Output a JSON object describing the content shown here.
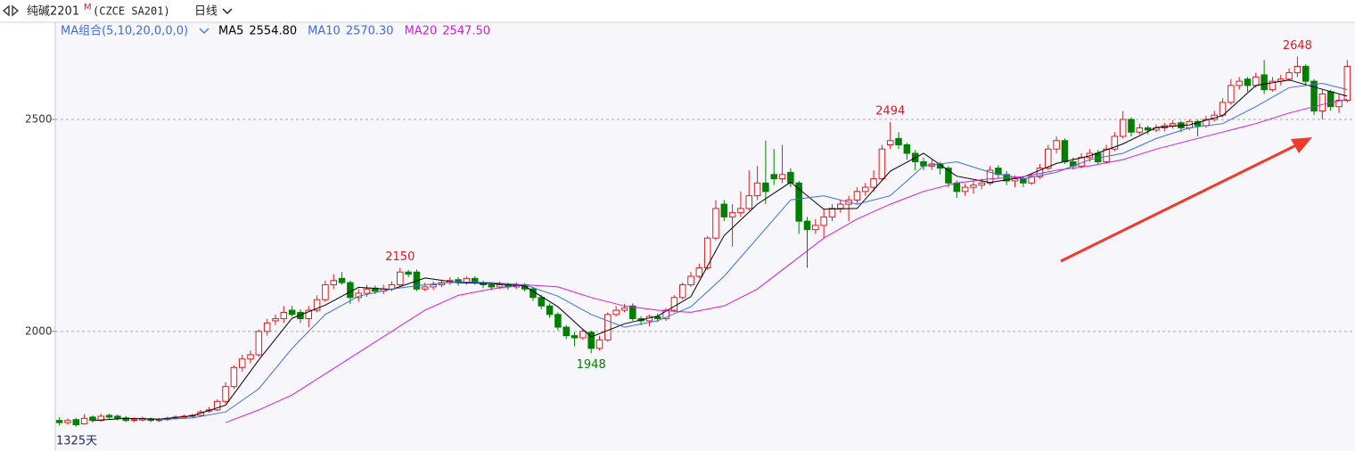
{
  "header": {
    "symbol": "纯碱2201",
    "flag": "M",
    "exchange": "(CZCE SA201)",
    "period": "日线",
    "ma_group": "MA组合(5,10,20,0,0,0)"
  },
  "chart_data": {
    "type": "candlestick",
    "up_color": "#e0191e",
    "down_color": "#008000",
    "ylim": [
      1718,
      2729
    ],
    "yticks": [
      2000,
      2500
    ],
    "grid": true,
    "candles": [
      [
        1790,
        1798,
        1778,
        1785
      ],
      [
        1785,
        1795,
        1780,
        1790
      ],
      [
        1792,
        1796,
        1775,
        1780
      ],
      [
        1782,
        1805,
        1780,
        1795
      ],
      [
        1798,
        1802,
        1785,
        1790
      ],
      [
        1790,
        1806,
        1788,
        1800
      ],
      [
        1802,
        1806,
        1792,
        1798
      ],
      [
        1800,
        1804,
        1790,
        1795
      ],
      [
        1796,
        1800,
        1786,
        1790
      ],
      [
        1790,
        1797,
        1786,
        1792
      ],
      [
        1791,
        1799,
        1788,
        1795
      ],
      [
        1794,
        1797,
        1786,
        1790
      ],
      [
        1790,
        1796,
        1787,
        1792
      ],
      [
        1792,
        1799,
        1789,
        1795
      ],
      [
        1795,
        1802,
        1792,
        1798
      ],
      [
        1798,
        1804,
        1794,
        1800
      ],
      [
        1800,
        1806,
        1796,
        1802
      ],
      [
        1802,
        1815,
        1800,
        1810
      ],
      [
        1812,
        1822,
        1808,
        1815
      ],
      [
        1815,
        1840,
        1812,
        1835
      ],
      [
        1835,
        1880,
        1830,
        1870
      ],
      [
        1870,
        1920,
        1865,
        1915
      ],
      [
        1915,
        1945,
        1905,
        1935
      ],
      [
        1935,
        1955,
        1925,
        1945
      ],
      [
        1945,
        2005,
        1940,
        2000
      ],
      [
        2000,
        2030,
        1990,
        2020
      ],
      [
        2025,
        2040,
        2015,
        2030
      ],
      [
        2030,
        2060,
        2020,
        2045
      ],
      [
        2050,
        2060,
        2035,
        2040
      ],
      [
        2045,
        2052,
        2020,
        2030
      ],
      [
        2030,
        2060,
        2010,
        2050
      ],
      [
        2050,
        2085,
        2045,
        2075
      ],
      [
        2075,
        2120,
        2070,
        2110
      ],
      [
        2110,
        2135,
        2100,
        2120
      ],
      [
        2125,
        2140,
        2110,
        2115
      ],
      [
        2115,
        2120,
        2065,
        2080
      ],
      [
        2080,
        2100,
        2070,
        2090
      ],
      [
        2090,
        2110,
        2082,
        2100
      ],
      [
        2102,
        2108,
        2088,
        2095
      ],
      [
        2095,
        2110,
        2088,
        2100
      ],
      [
        2100,
        2118,
        2095,
        2110
      ],
      [
        2110,
        2150,
        2105,
        2140
      ],
      [
        2140,
        2145,
        2128,
        2135
      ],
      [
        2140,
        2146,
        2095,
        2100
      ],
      [
        2100,
        2115,
        2095,
        2105
      ],
      [
        2105,
        2118,
        2098,
        2110
      ],
      [
        2110,
        2122,
        2104,
        2115
      ],
      [
        2115,
        2128,
        2110,
        2120
      ],
      [
        2122,
        2128,
        2108,
        2115
      ],
      [
        2115,
        2130,
        2110,
        2125
      ],
      [
        2125,
        2130,
        2110,
        2115
      ],
      [
        2115,
        2120,
        2102,
        2110
      ],
      [
        2110,
        2116,
        2098,
        2105
      ],
      [
        2105,
        2118,
        2100,
        2110
      ],
      [
        2110,
        2115,
        2098,
        2105
      ],
      [
        2105,
        2116,
        2100,
        2110
      ],
      [
        2110,
        2114,
        2094,
        2100
      ],
      [
        2100,
        2104,
        2072,
        2080
      ],
      [
        2080,
        2086,
        2052,
        2060
      ],
      [
        2060,
        2066,
        2032,
        2040
      ],
      [
        2040,
        2045,
        2002,
        2010
      ],
      [
        2010,
        2015,
        1982,
        1990
      ],
      [
        1990,
        1998,
        1965,
        1985
      ],
      [
        1985,
        2006,
        1980,
        2000
      ],
      [
        1998,
        2002,
        1948,
        1960
      ],
      [
        1960,
        1990,
        1955,
        1980
      ],
      [
        1980,
        2045,
        1975,
        2040
      ],
      [
        2040,
        2060,
        2035,
        2050
      ],
      [
        2050,
        2065,
        2045,
        2055
      ],
      [
        2060,
        2066,
        2025,
        2030
      ],
      [
        2030,
        2036,
        2015,
        2025
      ],
      [
        2025,
        2040,
        2012,
        2035
      ],
      [
        2035,
        2042,
        2022,
        2030
      ],
      [
        2030,
        2055,
        2025,
        2050
      ],
      [
        2050,
        2085,
        2045,
        2080
      ],
      [
        2080,
        2115,
        2075,
        2110
      ],
      [
        2110,
        2140,
        2105,
        2130
      ],
      [
        2130,
        2160,
        2125,
        2150
      ],
      [
        2150,
        2225,
        2145,
        2220
      ],
      [
        2220,
        2310,
        2215,
        2290
      ],
      [
        2300,
        2310,
        2260,
        2270
      ],
      [
        2270,
        2300,
        2200,
        2280
      ],
      [
        2280,
        2330,
        2270,
        2290
      ],
      [
        2290,
        2380,
        2285,
        2320
      ],
      [
        2320,
        2390,
        2310,
        2350
      ],
      [
        2350,
        2450,
        2300,
        2330
      ],
      [
        2370,
        2430,
        2345,
        2360
      ],
      [
        2360,
        2440,
        2350,
        2370
      ],
      [
        2375,
        2385,
        2340,
        2350
      ],
      [
        2350,
        2355,
        2230,
        2260
      ],
      [
        2260,
        2270,
        2150,
        2240
      ],
      [
        2240,
        2265,
        2230,
        2250
      ],
      [
        2250,
        2290,
        2220,
        2270
      ],
      [
        2270,
        2300,
        2260,
        2290
      ],
      [
        2290,
        2310,
        2280,
        2300
      ],
      [
        2300,
        2320,
        2260,
        2310
      ],
      [
        2310,
        2340,
        2300,
        2330
      ],
      [
        2330,
        2350,
        2320,
        2340
      ],
      [
        2340,
        2380,
        2330,
        2360
      ],
      [
        2360,
        2440,
        2355,
        2430
      ],
      [
        2440,
        2494,
        2430,
        2450
      ],
      [
        2455,
        2470,
        2430,
        2440
      ],
      [
        2440,
        2445,
        2405,
        2420
      ],
      [
        2420,
        2428,
        2380,
        2400
      ],
      [
        2400,
        2410,
        2380,
        2390
      ],
      [
        2390,
        2405,
        2380,
        2395
      ],
      [
        2395,
        2400,
        2370,
        2385
      ],
      [
        2385,
        2390,
        2340,
        2350
      ],
      [
        2350,
        2356,
        2315,
        2330
      ],
      [
        2330,
        2348,
        2320,
        2340
      ],
      [
        2340,
        2355,
        2325,
        2345
      ],
      [
        2345,
        2360,
        2335,
        2350
      ],
      [
        2350,
        2390,
        2345,
        2380
      ],
      [
        2385,
        2392,
        2360,
        2370
      ],
      [
        2370,
        2378,
        2345,
        2355
      ],
      [
        2355,
        2368,
        2340,
        2360
      ],
      [
        2360,
        2366,
        2340,
        2350
      ],
      [
        2350,
        2372,
        2345,
        2365
      ],
      [
        2365,
        2395,
        2360,
        2385
      ],
      [
        2385,
        2440,
        2380,
        2430
      ],
      [
        2430,
        2460,
        2420,
        2450
      ],
      [
        2450,
        2455,
        2395,
        2400
      ],
      [
        2400,
        2410,
        2382,
        2390
      ],
      [
        2390,
        2420,
        2385,
        2410
      ],
      [
        2410,
        2430,
        2400,
        2420
      ],
      [
        2420,
        2428,
        2395,
        2400
      ],
      [
        2400,
        2440,
        2395,
        2430
      ],
      [
        2430,
        2470,
        2425,
        2460
      ],
      [
        2460,
        2520,
        2455,
        2500
      ],
      [
        2500,
        2505,
        2460,
        2470
      ],
      [
        2470,
        2490,
        2465,
        2480
      ],
      [
        2480,
        2485,
        2465,
        2475
      ],
      [
        2475,
        2488,
        2470,
        2480
      ],
      [
        2480,
        2492,
        2472,
        2485
      ],
      [
        2485,
        2498,
        2478,
        2490
      ],
      [
        2492,
        2496,
        2470,
        2480
      ],
      [
        2480,
        2500,
        2475,
        2495
      ],
      [
        2495,
        2500,
        2460,
        2485
      ],
      [
        2485,
        2508,
        2480,
        2500
      ],
      [
        2500,
        2520,
        2495,
        2510
      ],
      [
        2510,
        2550,
        2505,
        2540
      ],
      [
        2540,
        2595,
        2535,
        2580
      ],
      [
        2580,
        2600,
        2570,
        2590
      ],
      [
        2595,
        2600,
        2565,
        2580
      ],
      [
        2580,
        2610,
        2575,
        2600
      ],
      [
        2605,
        2640,
        2560,
        2570
      ],
      [
        2570,
        2600,
        2565,
        2590
      ],
      [
        2590,
        2605,
        2580,
        2595
      ],
      [
        2595,
        2620,
        2590,
        2610
      ],
      [
        2610,
        2648,
        2600,
        2625
      ],
      [
        2625,
        2630,
        2580,
        2590
      ],
      [
        2590,
        2595,
        2510,
        2520
      ],
      [
        2520,
        2570,
        2500,
        2560
      ],
      [
        2565,
        2570,
        2520,
        2530
      ],
      [
        2530,
        2558,
        2515,
        2545
      ],
      [
        2545,
        2640,
        2540,
        2625
      ]
    ],
    "series": [
      {
        "name": "MA5",
        "color": "#000000",
        "current": {
          "value": 2554.8,
          "label": "2554.80"
        },
        "x": [
          4,
          8,
          12,
          16,
          20,
          24,
          28,
          32,
          36,
          40,
          44,
          48,
          52,
          56,
          60,
          64,
          68,
          72,
          76,
          80,
          84,
          88,
          92,
          96,
          100,
          104,
          108,
          112,
          116,
          120,
          124,
          128,
          132,
          136,
          140,
          144,
          148,
          152,
          155
        ],
        "values": [
          1790,
          1795,
          1793,
          1801,
          1826,
          1933,
          2031,
          2062,
          2104,
          2099,
          2126,
          2115,
          2113,
          2107,
          2058,
          1987,
          2018,
          2036,
          2082,
          2226,
          2300,
          2352,
          2288,
          2290,
          2378,
          2420,
          2366,
          2351,
          2364,
          2396,
          2414,
          2442,
          2481,
          2487,
          2509,
          2580,
          2593,
          2571,
          2554.8
        ]
      },
      {
        "name": "MA10",
        "color": "#3a6fd8",
        "current": {
          "value": 2570.3,
          "label": "2570.30"
        },
        "x": [
          12,
          16,
          20,
          24,
          28,
          32,
          36,
          40,
          44,
          48,
          52,
          56,
          60,
          64,
          68,
          72,
          76,
          80,
          84,
          88,
          92,
          96,
          100,
          104,
          108,
          112,
          116,
          120,
          124,
          128,
          132,
          136,
          140,
          144,
          148,
          152,
          155
        ],
        "values": [
          1792,
          1796,
          1810,
          1865,
          1960,
          2040,
          2083,
          2100,
          2110,
          2117,
          2115,
          2110,
          2083,
          2040,
          2010,
          2025,
          2058,
          2130,
          2220,
          2310,
          2320,
          2300,
          2320,
          2390,
          2400,
          2375,
          2360,
          2375,
          2405,
          2420,
          2455,
          2480,
          2490,
          2530,
          2575,
          2585,
          2570.3
        ]
      },
      {
        "name": "MA20",
        "color": "#d61ad6",
        "current": {
          "value": 2547.5,
          "label": "2547.50"
        },
        "x": [
          20,
          24,
          28,
          32,
          36,
          40,
          44,
          48,
          52,
          56,
          60,
          64,
          68,
          72,
          76,
          80,
          84,
          88,
          92,
          96,
          100,
          104,
          108,
          112,
          116,
          120,
          124,
          128,
          132,
          136,
          140,
          144,
          148,
          152,
          155
        ],
        "values": [
          1785,
          1815,
          1850,
          1900,
          1950,
          2000,
          2050,
          2085,
          2100,
          2110,
          2105,
          2080,
          2060,
          2050,
          2045,
          2060,
          2100,
          2160,
          2220,
          2265,
          2300,
          2330,
          2350,
          2360,
          2365,
          2380,
          2390,
          2405,
          2430,
          2450,
          2470,
          2490,
          2515,
          2535,
          2547.5
        ]
      }
    ],
    "annotations": [
      {
        "index": 41,
        "value": 2150,
        "color": "#e0191e"
      },
      {
        "index": 64,
        "value": 1948,
        "color": "#008000"
      },
      {
        "index": 100,
        "value": 2494,
        "color": "#e0191e"
      },
      {
        "index": 149,
        "value": 2648,
        "color": "#e0191e"
      }
    ],
    "corner_label": "1325天"
  }
}
